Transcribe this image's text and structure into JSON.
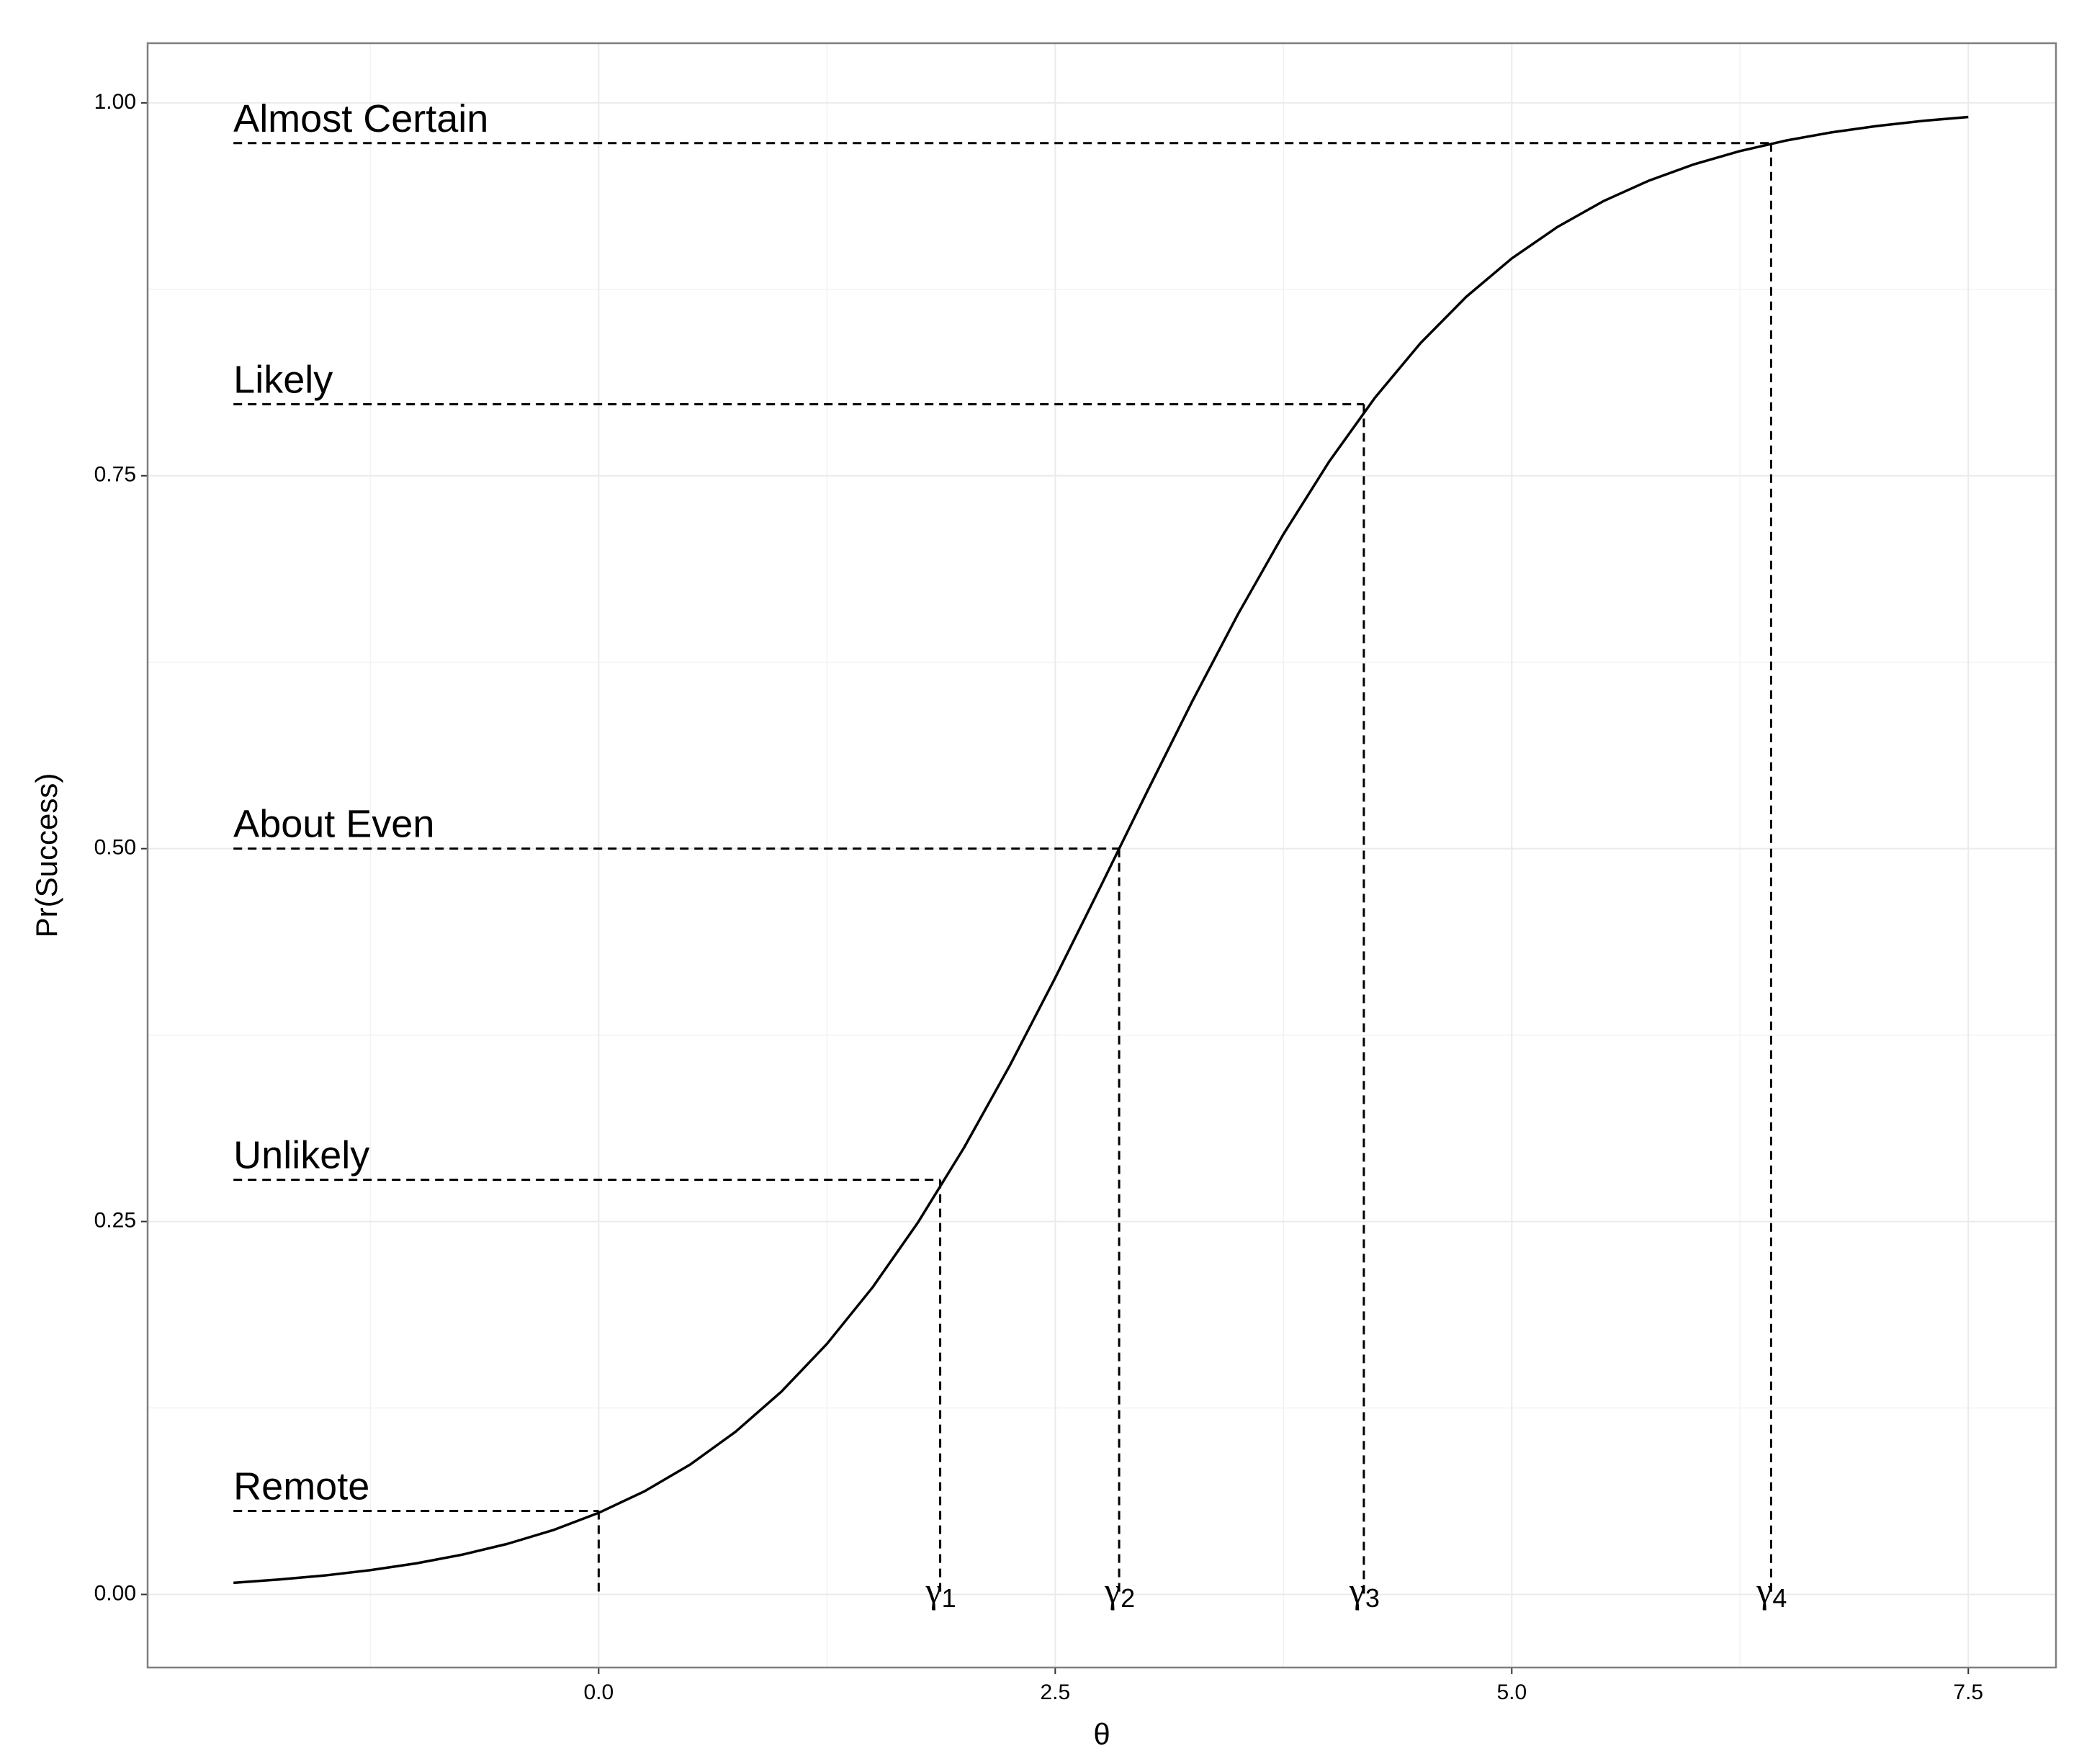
{
  "chart_data": {
    "type": "line",
    "x_label": "θ",
    "y_label": "Pr(Success)",
    "x": [
      -2,
      -1.75,
      -1.5,
      -1.25,
      -1,
      -0.75,
      -0.5,
      -0.25,
      0,
      0.25,
      0.5,
      0.75,
      1,
      1.25,
      1.5,
      1.75,
      2,
      2.25,
      2.5,
      2.75,
      3,
      3.25,
      3.5,
      3.75,
      4,
      4.25,
      4.5,
      4.75,
      5,
      5.25,
      5.5,
      5.75,
      6,
      6.25,
      6.5,
      6.75,
      7,
      7.25,
      7.5
    ],
    "values": [
      0.0078,
      0.01,
      0.0127,
      0.0163,
      0.0208,
      0.0266,
      0.0339,
      0.0431,
      0.0547,
      0.0691,
      0.087,
      0.1091,
      0.1359,
      0.168,
      0.2059,
      0.2497,
      0.2994,
      0.3543,
      0.4134,
      0.475,
      0.5374,
      0.5987,
      0.657,
      0.7109,
      0.7595,
      0.8022,
      0.8389,
      0.8699,
      0.8957,
      0.9168,
      0.934,
      0.9478,
      0.9589,
      0.9677,
      0.9747,
      0.9802,
      0.9845,
      0.9879,
      0.9905
    ],
    "color": "#000000",
    "xlim": [
      -2.47,
      7.98
    ],
    "ylim": [
      -0.049,
      1.04
    ],
    "xticks": [
      {
        "value": 0,
        "label": "0.0"
      },
      2.5,
      {
        "value": 5,
        "label": "5.0"
      },
      7.5
    ],
    "yticks": [
      {
        "value": 0,
        "label": "0.00"
      },
      0.25,
      {
        "value": 0.5,
        "label": "0.50"
      },
      0.75,
      {
        "value": 1,
        "label": "1.00"
      }
    ],
    "grid": true,
    "thresholds": [
      {
        "label": "Remote",
        "x": 0,
        "y": 0.056
      },
      {
        "label": "Unlikely",
        "x": 1.87,
        "y": 0.278,
        "symbol": "γ",
        "subscript": "1"
      },
      {
        "label": "About Even",
        "x": 2.85,
        "y": 0.5,
        "symbol": "γ",
        "subscript": "2"
      },
      {
        "label": "Likely",
        "x": 4.19,
        "y": 0.798,
        "symbol": "γ",
        "subscript": "3"
      },
      {
        "label": "Almost Certain",
        "x": 6.42,
        "y": 0.973,
        "symbol": "γ",
        "subscript": "4"
      }
    ]
  }
}
